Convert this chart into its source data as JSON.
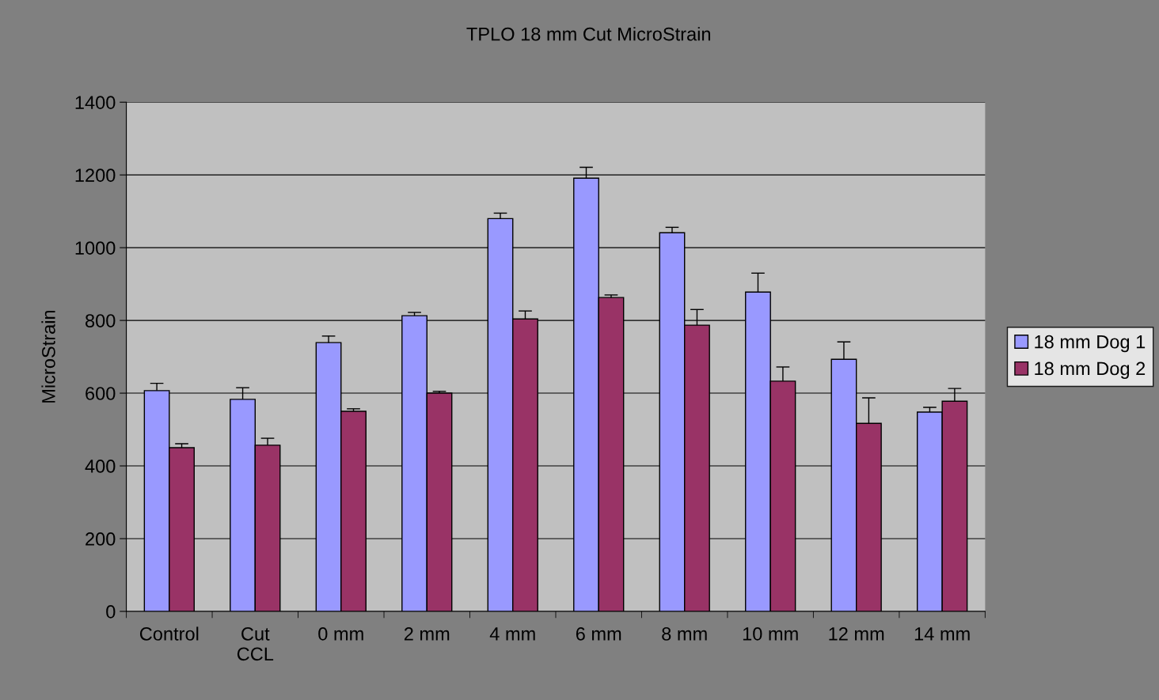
{
  "chart_data": {
    "type": "bar",
    "title": "TPLO 18 mm Cut MicroStrain",
    "ylabel": "MicroStrain",
    "categories": [
      "Control",
      "Cut\nCCL",
      "0 mm",
      "2 mm",
      "4 mm",
      "6 mm",
      "8 mm",
      "10 mm",
      "12 mm",
      "14 mm"
    ],
    "series": [
      {
        "name": "18 mm Dog 1",
        "color": "#9999ff",
        "values": [
          607,
          583,
          739,
          813,
          1080,
          1191,
          1041,
          878,
          693,
          548
        ],
        "errors": [
          20,
          32,
          18,
          9,
          15,
          30,
          15,
          52,
          48,
          13
        ]
      },
      {
        "name": "18 mm Dog 2",
        "color": "#993366",
        "values": [
          450,
          457,
          550,
          600,
          804,
          863,
          787,
          633,
          517,
          578
        ],
        "errors": [
          11,
          19,
          7,
          5,
          22,
          7,
          43,
          39,
          70,
          35
        ]
      }
    ],
    "ylim": [
      0,
      1400
    ],
    "yticks": [
      0,
      200,
      400,
      600,
      800,
      1000,
      1200,
      1400
    ],
    "grid": "y",
    "legend": "right"
  }
}
